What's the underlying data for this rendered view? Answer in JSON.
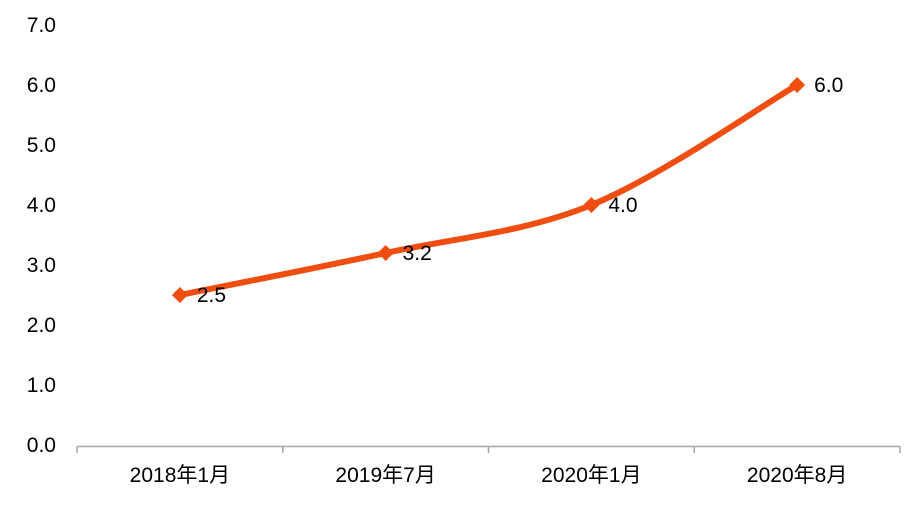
{
  "chart_data": {
    "type": "line",
    "categories": [
      "2018年1月",
      "2019年7月",
      "2020年1月",
      "2020年8月"
    ],
    "values": [
      2.5,
      3.2,
      4.0,
      6.0
    ],
    "data_labels": [
      "2.5",
      "3.2",
      "4.0",
      "6.0"
    ],
    "series_name": "",
    "xlabel": "",
    "ylabel": "",
    "ylim": [
      0.0,
      7.0
    ],
    "ytick_step": 1.0,
    "ytick_labels": [
      "0.0",
      "1.0",
      "2.0",
      "3.0",
      "4.0",
      "5.0",
      "6.0",
      "7.0"
    ],
    "grid": false,
    "legend_position": "none",
    "line_style": "smooth",
    "marker": "diamond",
    "data_label_position": "right",
    "colors": {
      "line": "#F04E11",
      "marker": "#F04E11",
      "axis": "#A6A6A6",
      "text": "#000000",
      "background": "#FFFFFF"
    }
  }
}
